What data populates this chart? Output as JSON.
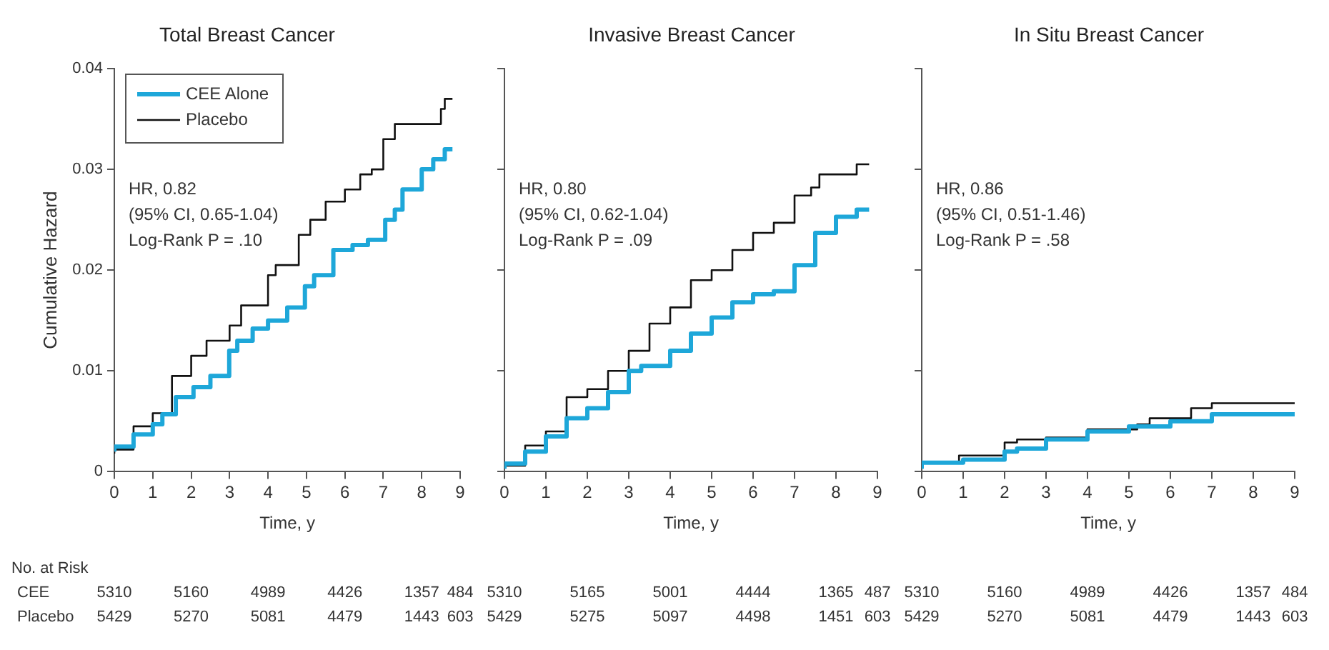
{
  "chart_data": [
    {
      "type": "step",
      "title": "Total Breast Cancer",
      "xlabel": "Time, y",
      "ylabel": "Cumulative Hazard",
      "xlim": [
        0,
        9
      ],
      "xticks": [
        0,
        1,
        2,
        3,
        4,
        5,
        6,
        7,
        8,
        9
      ],
      "ylim": [
        0,
        0.04
      ],
      "yticks": [
        0,
        0.01,
        0.02,
        0.03,
        0.04
      ],
      "legend": "top left",
      "series": [
        {
          "name": "CEE Alone",
          "color": "#1ea7d9",
          "x": [
            0,
            0.5,
            1,
            1.25,
            1.6,
            2.06,
            2.5,
            2.99,
            3.2,
            3.6,
            4.0,
            4.5,
            4.96,
            5.2,
            5.7,
            6.2,
            6.6,
            7.05,
            7.3,
            7.5,
            8.0,
            8.3,
            8.6,
            8.8
          ],
          "values": [
            0.002,
            0.0025,
            0.0037,
            0.0047,
            0.0057,
            0.0074,
            0.0084,
            0.0095,
            0.012,
            0.013,
            0.0142,
            0.015,
            0.0163,
            0.0184,
            0.0195,
            0.022,
            0.0225,
            0.023,
            0.025,
            0.026,
            0.028,
            0.03,
            0.031,
            0.032
          ]
        },
        {
          "name": "Placebo",
          "color": "#111111",
          "x": [
            0,
            0.5,
            1,
            1.5,
            2,
            2.4,
            3,
            3.3,
            4,
            4.2,
            4.8,
            5.1,
            5.5,
            6,
            6.4,
            6.7,
            7,
            7.3,
            7.6,
            8.5,
            8.6,
            8.8
          ],
          "values": [
            0.0018,
            0.0022,
            0.0045,
            0.0058,
            0.0095,
            0.0115,
            0.013,
            0.0145,
            0.0165,
            0.0195,
            0.0205,
            0.0235,
            0.025,
            0.0268,
            0.028,
            0.0295,
            0.03,
            0.033,
            0.0345,
            0.0345,
            0.036,
            0.037
          ]
        }
      ],
      "annotations": [
        "HR, 0.82",
        "(95% CI, 0.65-1.04)",
        "Log-Rank P = .10",
        "No. at Risk",
        "CEE",
        "Placebo",
        "5310",
        "5160",
        "4989",
        "4426",
        "1357",
        "484",
        "5429",
        "5270",
        "5081",
        "4479",
        "1443",
        "603"
      ]
    },
    {
      "type": "step",
      "title": "Invasive Breast Cancer",
      "xlabel": "Time, y",
      "xlim": [
        0,
        9
      ],
      "xticks": [
        0,
        1,
        2,
        3,
        4,
        5,
        6,
        7,
        8,
        9
      ],
      "ylim": [
        0,
        0.04
      ],
      "yticks": [
        0,
        0.01,
        0.02,
        0.03,
        0.04
      ],
      "tick_labels": "x",
      "series": [
        {
          "color": "#1ea7d9",
          "x": [
            0,
            0.5,
            1,
            1.5,
            2,
            2.5,
            3,
            3.3,
            4,
            4.5,
            5,
            5.5,
            6,
            6.5,
            7,
            7.5,
            8,
            8.5,
            8.8
          ],
          "values": [
            0.0003,
            0.0008,
            0.002,
            0.0035,
            0.0053,
            0.0063,
            0.0079,
            0.01,
            0.0105,
            0.012,
            0.0137,
            0.0153,
            0.0168,
            0.0176,
            0.0179,
            0.0205,
            0.0237,
            0.0253,
            0.026
          ]
        },
        {
          "color": "#111111",
          "x": [
            0,
            0.5,
            1,
            1.5,
            2,
            2.5,
            3,
            3.5,
            4,
            4.5,
            5,
            5.5,
            6,
            6.5,
            7,
            7.4,
            7.6,
            8.5,
            8.8
          ],
          "values": [
            0.0003,
            0.0006,
            0.0026,
            0.004,
            0.0074,
            0.0082,
            0.01,
            0.012,
            0.0147,
            0.0163,
            0.019,
            0.02,
            0.022,
            0.0237,
            0.0247,
            0.0274,
            0.0282,
            0.0295,
            0.0305
          ]
        }
      ],
      "annotations": [
        "HR, 0.80",
        "(95% CI, 0.62-1.04)",
        "Log-Rank P = .09",
        "5310",
        "5165",
        "5001",
        "4444",
        "1365",
        "487",
        "5429",
        "5275",
        "5097",
        "4498",
        "1451",
        "603"
      ]
    },
    {
      "type": "step",
      "title": "In Situ Breast Cancer",
      "xlabel": "Time, y",
      "xlim": [
        0,
        9
      ],
      "xticks": [
        0,
        1,
        2,
        3,
        4,
        5,
        6,
        7,
        8,
        9
      ],
      "ylim": [
        0,
        0.04
      ],
      "yticks": [
        0,
        0.01,
        0.02,
        0.03,
        0.04
      ],
      "tick_labels": "x",
      "series": [
        {
          "color": "#1ea7d9",
          "x": [
            0,
            1,
            2,
            2.3,
            3,
            4,
            5,
            5.5,
            6,
            7,
            7.6,
            9
          ],
          "values": [
            0.0003,
            0.0009,
            0.0012,
            0.002,
            0.0023,
            0.0032,
            0.004,
            0.0045,
            0.0045,
            0.005,
            0.0057,
            0.0057
          ]
        },
        {
          "color": "#111111",
          "x": [
            0,
            0.9,
            2,
            2.3,
            3,
            4,
            5.2,
            5.5,
            6.5,
            7,
            7.7,
            9
          ],
          "values": [
            0.0003,
            0.001,
            0.0016,
            0.0029,
            0.0032,
            0.0034,
            0.0042,
            0.0047,
            0.0053,
            0.0063,
            0.0068,
            0.0068
          ]
        }
      ],
      "annotations": [
        "HR, 0.86",
        "(95% CI, 0.51-1.46)",
        "Log-Rank P = .58",
        "5310",
        "5160",
        "4989",
        "4426",
        "1357",
        "484",
        "5429",
        "5270",
        "5081",
        "4479",
        "1443",
        "603"
      ]
    }
  ]
}
